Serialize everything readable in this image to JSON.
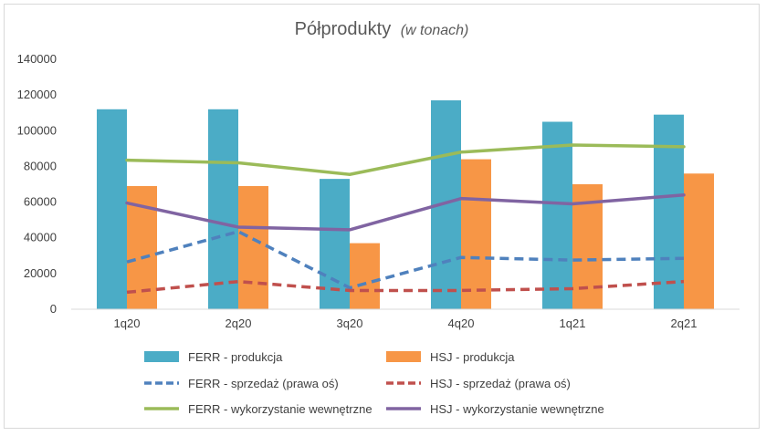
{
  "chart_data": {
    "type": "bar",
    "title": "Półprodukty",
    "subtitle": "(w tonach)",
    "categories": [
      "1q20",
      "2q20",
      "3q20",
      "4q20",
      "1q21",
      "2q21"
    ],
    "ylim": [
      0,
      140000
    ],
    "yticks": [
      0,
      20000,
      40000,
      60000,
      80000,
      100000,
      120000,
      140000
    ],
    "grid": false,
    "legend_position": "bottom",
    "series": [
      {
        "name": "FERR - produkcja",
        "kind": "bar",
        "color": "#4bacc6",
        "values": [
          112000,
          112000,
          73000,
          117000,
          105000,
          109000
        ]
      },
      {
        "name": "HSJ - produkcja",
        "kind": "bar",
        "color": "#f79646",
        "values": [
          69000,
          69000,
          37000,
          84000,
          70000,
          76000
        ]
      },
      {
        "name": "FERR - sprzedaż (prawa oś)",
        "kind": "dashed-line",
        "color": "#4f81bd",
        "values": [
          26500,
          43500,
          12000,
          29000,
          27500,
          28500
        ]
      },
      {
        "name": "HSJ - sprzedaż (prawa oś)",
        "kind": "dashed-line",
        "color": "#c0504d",
        "values": [
          9500,
          15500,
          10500,
          10500,
          11500,
          15500
        ]
      },
      {
        "name": "FERR - wykorzystanie wewnętrzne",
        "kind": "line",
        "color": "#9bbb59",
        "values": [
          83500,
          82000,
          75500,
          88000,
          92000,
          91000
        ]
      },
      {
        "name": "HSJ - wykorzystanie wewnętrzne",
        "kind": "line",
        "color": "#8064a2",
        "values": [
          59500,
          46000,
          44500,
          62000,
          59000,
          64000
        ]
      }
    ]
  }
}
